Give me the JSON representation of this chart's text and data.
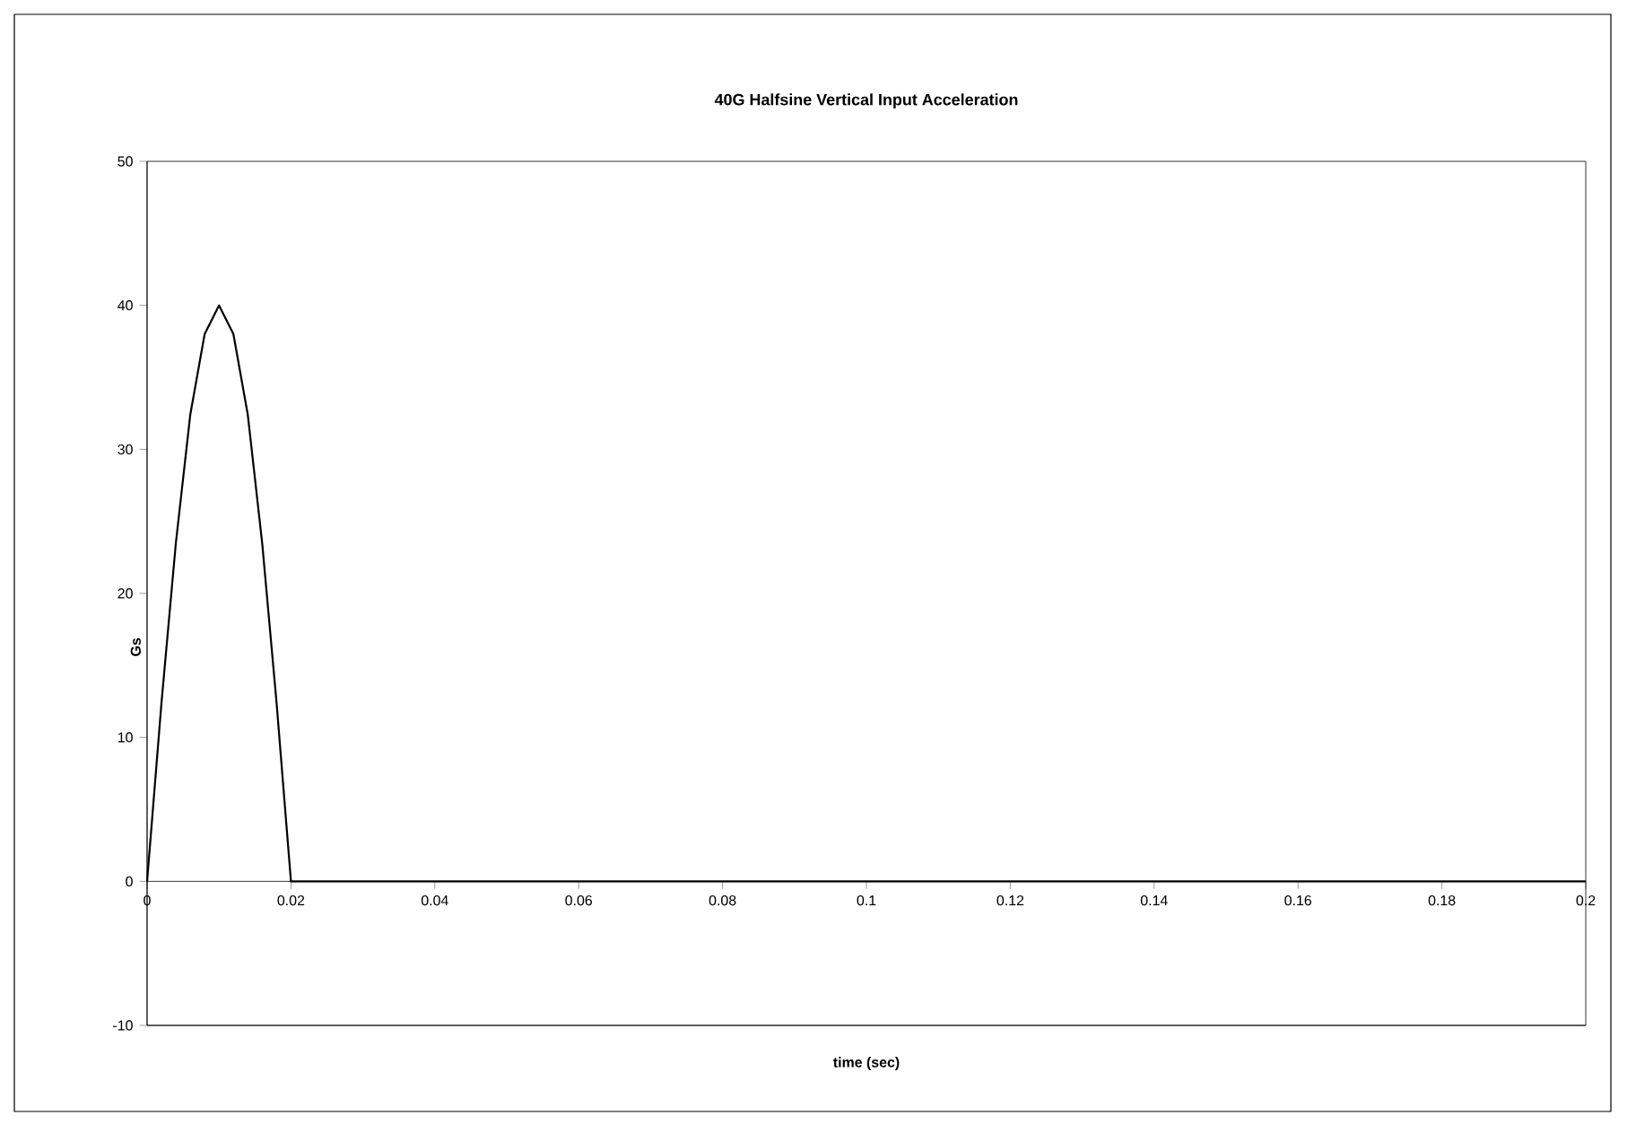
{
  "chart_data": {
    "type": "line",
    "title": "40G Halfsine Vertical Input Acceleration",
    "xlabel": "time (sec)",
    "ylabel": "Gs",
    "x": [
      0,
      0.002,
      0.004,
      0.006,
      0.008,
      0.01,
      0.012,
      0.014,
      0.016,
      0.018,
      0.02,
      0.2
    ],
    "series": [
      {
        "color": "#000000",
        "values": [
          0,
          12.4,
          23.5,
          32.4,
          38.0,
          40,
          38.0,
          32.4,
          23.5,
          12.4,
          0,
          0
        ]
      }
    ],
    "xlim": [
      0,
      0.2
    ],
    "ylim": [
      -10,
      50
    ],
    "xticks": [
      0,
      0.02,
      0.04,
      0.06,
      0.08,
      0.1,
      0.12,
      0.14,
      0.16,
      0.18,
      0.2
    ],
    "yticks": [
      -10,
      0,
      10,
      20,
      30,
      40,
      50
    ],
    "grid": false,
    "marker": "none",
    "line_style": "solid"
  }
}
